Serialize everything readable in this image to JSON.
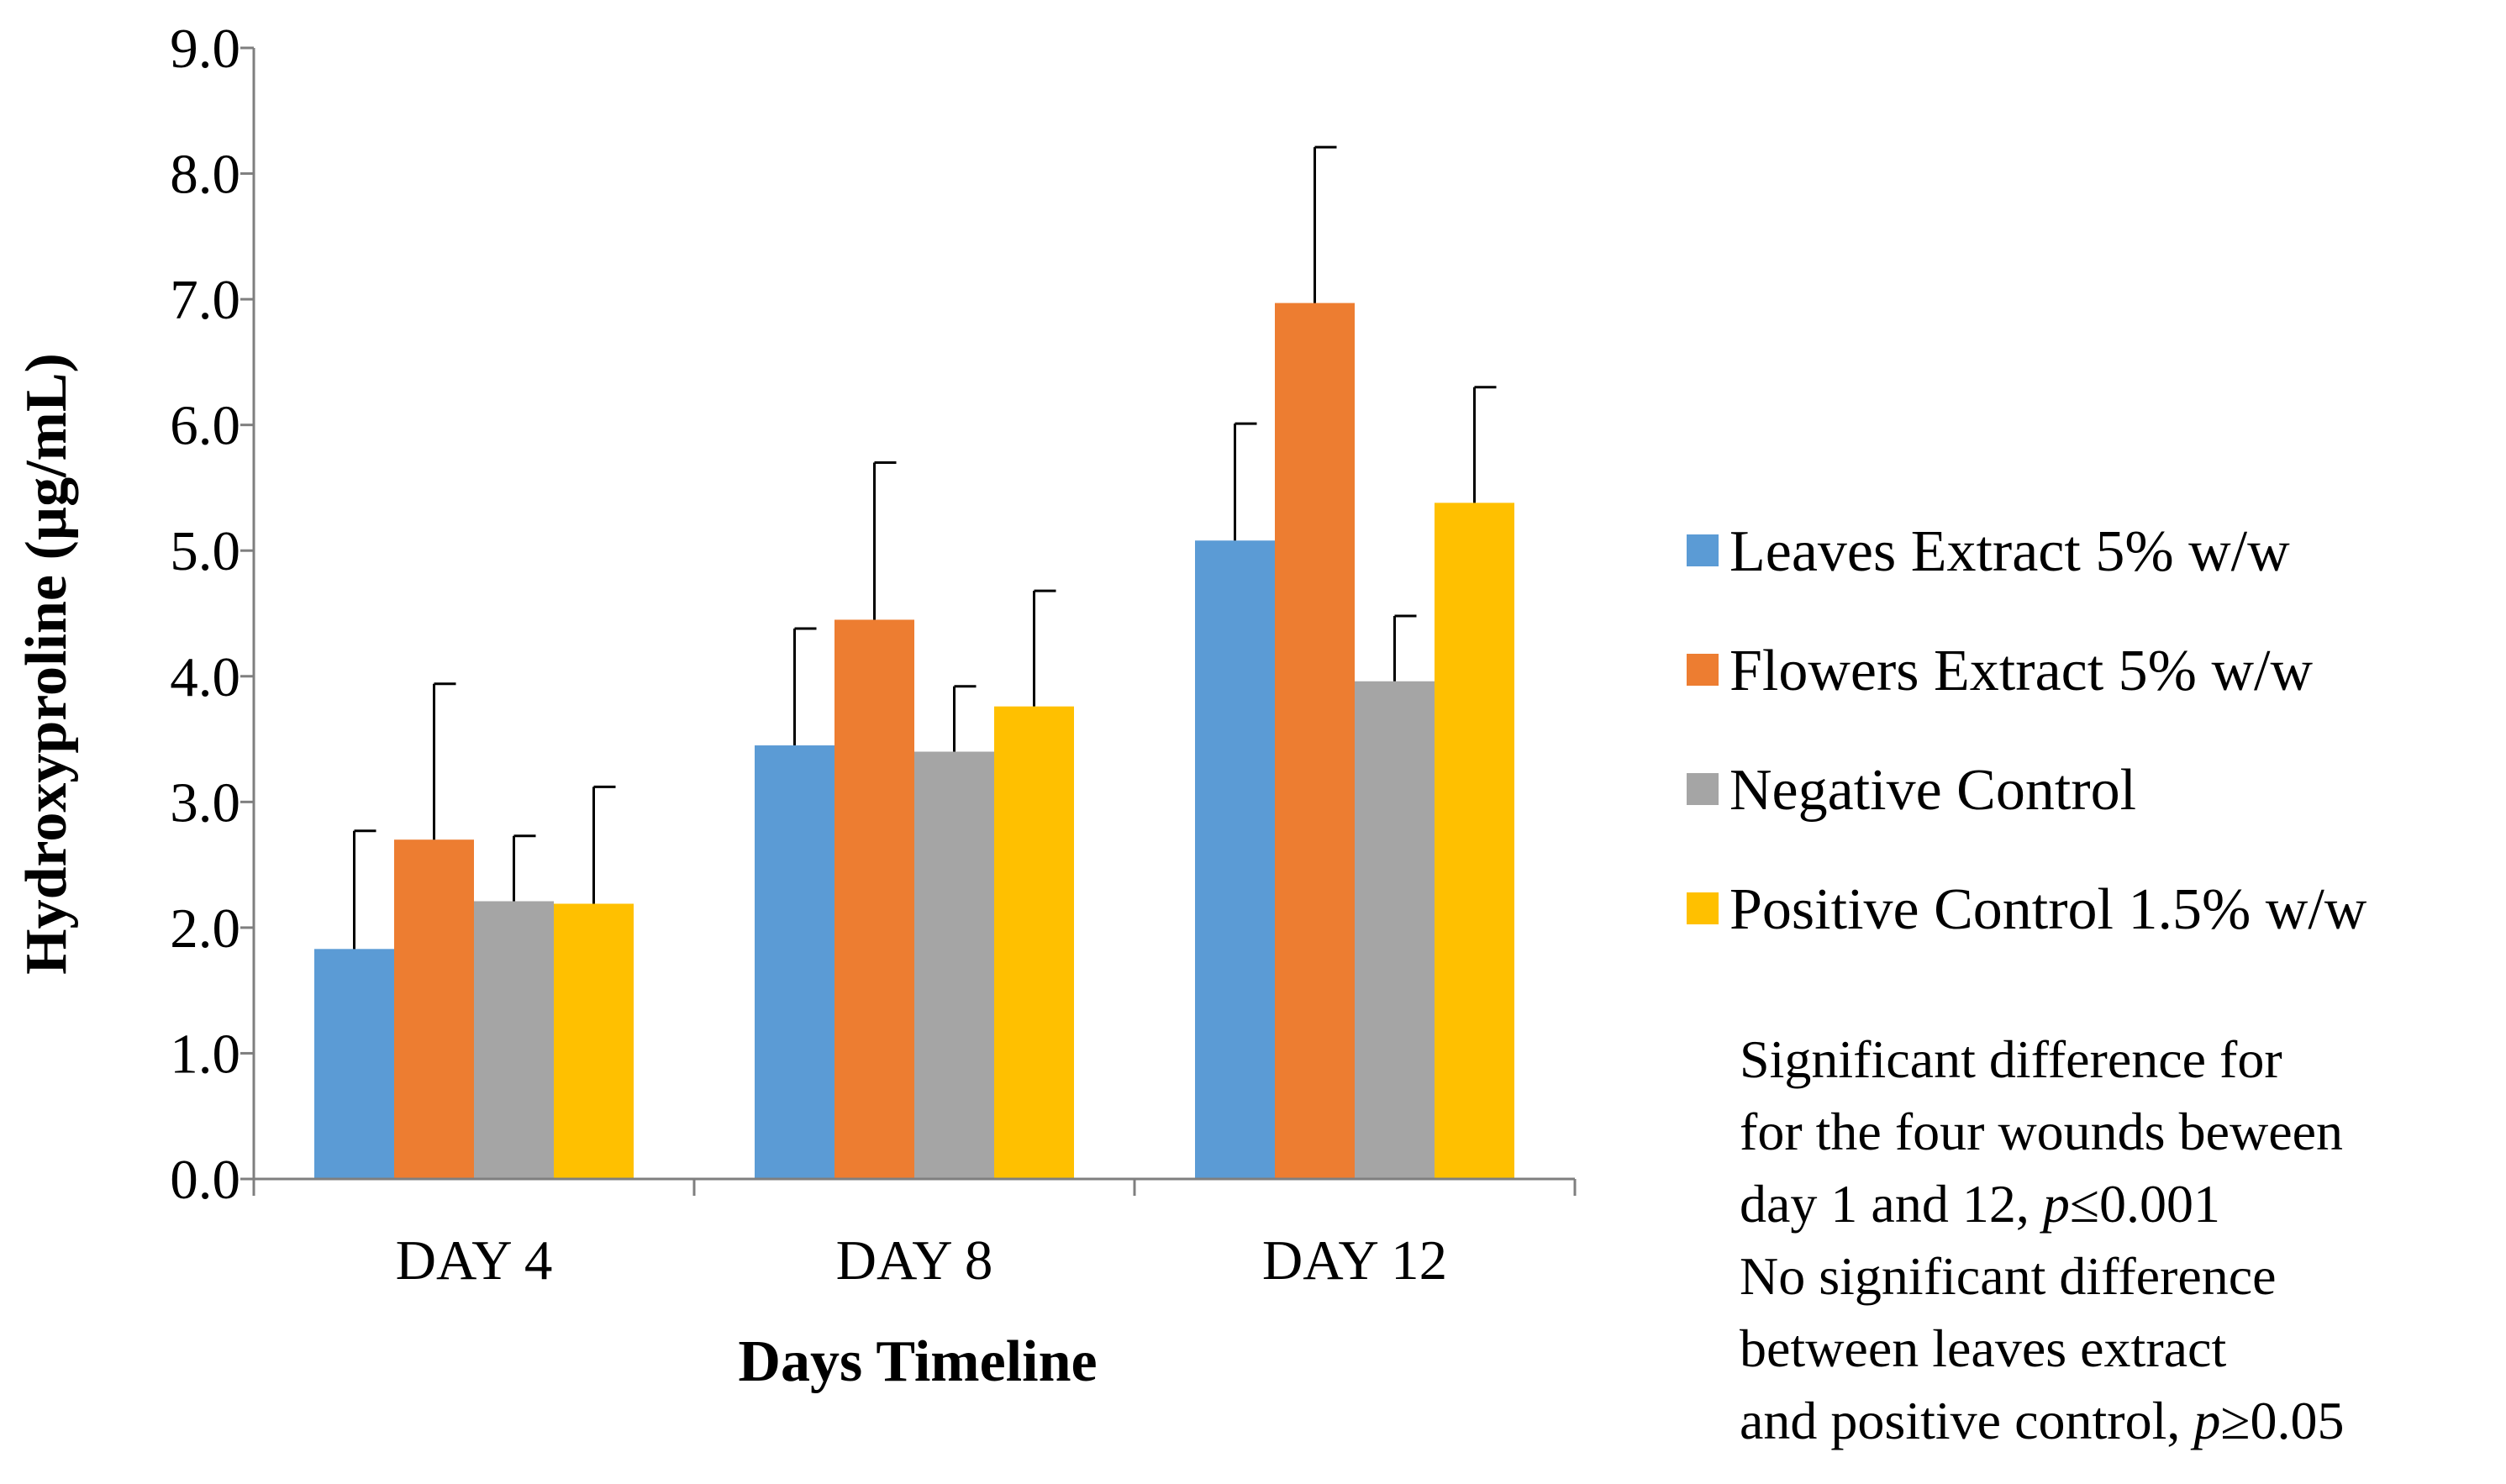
{
  "chart_data": {
    "type": "bar",
    "title": "",
    "xlabel": "Days Timeline",
    "ylabel": "Hydroxyproline (µg/mL)",
    "ylim": [
      0,
      9
    ],
    "yticks": [
      "0.0",
      "1.0",
      "2.0",
      "3.0",
      "4.0",
      "5.0",
      "6.0",
      "7.0",
      "8.0",
      "9.0"
    ],
    "categories": [
      "DAY 4",
      "DAY 8",
      "DAY 12"
    ],
    "series": [
      {
        "name": "Leaves Extract 5% w/w",
        "color": "#5B9BD5",
        "values": [
          1.83,
          3.45,
          5.08
        ],
        "errors": [
          0.94,
          0.93,
          0.93
        ]
      },
      {
        "name": "Flowers Extract 5% w/w",
        "color": "#ED7D31",
        "values": [
          2.7,
          4.45,
          6.97
        ],
        "errors": [
          1.24,
          1.25,
          1.24
        ]
      },
      {
        "name": "Negative Control",
        "color": "#A5A5A5",
        "values": [
          2.21,
          3.4,
          3.96
        ],
        "errors": [
          0.52,
          0.52,
          0.52
        ]
      },
      {
        "name": "Positive Control 1.5% w/w",
        "color": "#FFC000",
        "values": [
          2.19,
          3.76,
          5.38
        ],
        "errors": [
          0.93,
          0.92,
          0.92
        ]
      }
    ],
    "legend_position": "right",
    "grid": false
  },
  "notes": {
    "line1": "Significant difference for",
    "line2": "for the four wounds beween",
    "line3_a": "day 1 and 12, ",
    "line3_p": "p",
    "line3_b": "≤0.001",
    "line4": "No significant difference",
    "line5": "between leaves extract",
    "line6_a": "and positive control, ",
    "line6_p": "p",
    "line6_b": "≥0.05"
  }
}
